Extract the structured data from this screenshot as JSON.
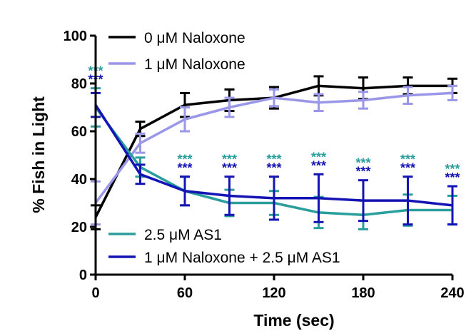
{
  "chart_data": {
    "type": "line",
    "xlabel": "Time (sec)",
    "ylabel": "% Fish in Light",
    "xlim": [
      0,
      240
    ],
    "ylim": [
      0,
      100
    ],
    "x_ticks": [
      "0",
      "60",
      "120",
      "180",
      "240"
    ],
    "y_ticks": [
      "0",
      "20",
      "40",
      "60",
      "80",
      "100"
    ],
    "x": [
      0,
      30,
      60,
      90,
      120,
      150,
      180,
      210,
      240
    ],
    "legend_position": "top-left and bottom-left",
    "grid": false,
    "series": [
      {
        "name": "0 μM Naloxone",
        "color": "#000000",
        "values": [
          24,
          61,
          71,
          73,
          74,
          79,
          78,
          79,
          79
        ],
        "errors": [
          5,
          3,
          5,
          4.5,
          4.5,
          4,
          4.5,
          3.5,
          3
        ]
      },
      {
        "name": "1 μM Naloxone",
        "color": "#9a96e8",
        "values": [
          30,
          55,
          65,
          70,
          74,
          72,
          73,
          75,
          76
        ],
        "errors": [
          9,
          4,
          5,
          4,
          3.5,
          3.5,
          3.5,
          3.5,
          3
        ]
      },
      {
        "name": "2.5 μM AS1",
        "color": "#2a9d9d",
        "values": [
          70,
          45,
          35,
          30,
          30,
          26,
          25,
          27,
          27
        ],
        "errors": [
          8,
          4,
          6,
          5.5,
          5,
          6.5,
          6,
          6.5,
          6
        ]
      },
      {
        "name": "1 μM Naloxone + 2.5 μM AS1",
        "color": "#1414b4",
        "values": [
          71,
          42,
          35,
          33,
          32,
          32,
          31,
          31,
          29
        ],
        "errors": [
          5,
          4,
          6,
          8,
          9,
          10,
          8.5,
          10,
          8
        ]
      }
    ],
    "significance": [
      {
        "x": 0,
        "text_upper": "***",
        "text_lower": "***"
      },
      {
        "x": 60,
        "text_upper": "***",
        "text_lower": "***"
      },
      {
        "x": 90,
        "text_upper": "***",
        "text_lower": "***"
      },
      {
        "x": 120,
        "text_upper": "***",
        "text_lower": "***"
      },
      {
        "x": 150,
        "text_upper": "***",
        "text_lower": "***"
      },
      {
        "x": 180,
        "text_upper": "***",
        "text_lower": "***"
      },
      {
        "x": 210,
        "text_upper": "***",
        "text_lower": "***"
      },
      {
        "x": 240,
        "text_upper": "***",
        "text_lower": "***"
      }
    ],
    "significance_colors": {
      "upper": "#2a9d9d",
      "lower": "#1414b4"
    }
  }
}
